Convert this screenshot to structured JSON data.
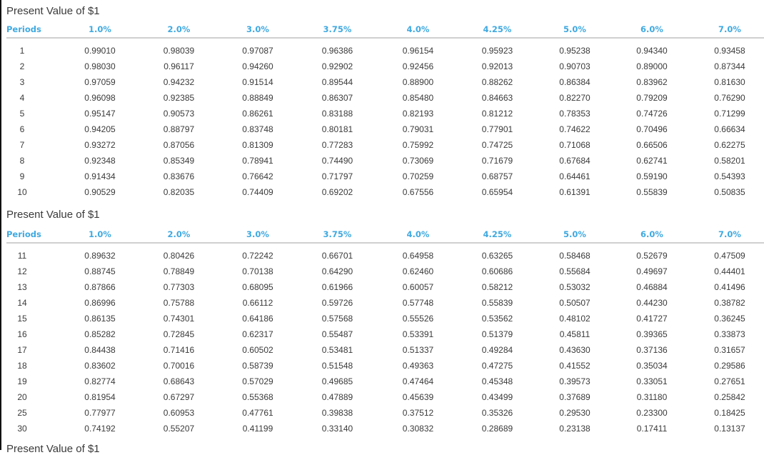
{
  "tables": [
    {
      "title": "Present Value of $1",
      "headers": [
        "Periods",
        "1.0%",
        "2.0%",
        "3.0%",
        "3.75%",
        "4.0%",
        "4.25%",
        "5.0%",
        "6.0%",
        "7.0%"
      ],
      "rows": [
        [
          "1",
          "0.99010",
          "0.98039",
          "0.97087",
          "0.96386",
          "0.96154",
          "0.95923",
          "0.95238",
          "0.94340",
          "0.93458"
        ],
        [
          "2",
          "0.98030",
          "0.96117",
          "0.94260",
          "0.92902",
          "0.92456",
          "0.92013",
          "0.90703",
          "0.89000",
          "0.87344"
        ],
        [
          "3",
          "0.97059",
          "0.94232",
          "0.91514",
          "0.89544",
          "0.88900",
          "0.88262",
          "0.86384",
          "0.83962",
          "0.81630"
        ],
        [
          "4",
          "0.96098",
          "0.92385",
          "0.88849",
          "0.86307",
          "0.85480",
          "0.84663",
          "0.82270",
          "0.79209",
          "0.76290"
        ],
        [
          "5",
          "0.95147",
          "0.90573",
          "0.86261",
          "0.83188",
          "0.82193",
          "0.81212",
          "0.78353",
          "0.74726",
          "0.71299"
        ],
        [
          "6",
          "0.94205",
          "0.88797",
          "0.83748",
          "0.80181",
          "0.79031",
          "0.77901",
          "0.74622",
          "0.70496",
          "0.66634"
        ],
        [
          "7",
          "0.93272",
          "0.87056",
          "0.81309",
          "0.77283",
          "0.75992",
          "0.74725",
          "0.71068",
          "0.66506",
          "0.62275"
        ],
        [
          "8",
          "0.92348",
          "0.85349",
          "0.78941",
          "0.74490",
          "0.73069",
          "0.71679",
          "0.67684",
          "0.62741",
          "0.58201"
        ],
        [
          "9",
          "0.91434",
          "0.83676",
          "0.76642",
          "0.71797",
          "0.70259",
          "0.68757",
          "0.64461",
          "0.59190",
          "0.54393"
        ],
        [
          "10",
          "0.90529",
          "0.82035",
          "0.74409",
          "0.69202",
          "0.67556",
          "0.65954",
          "0.61391",
          "0.55839",
          "0.50835"
        ]
      ]
    },
    {
      "title": "Present Value of $1",
      "headers": [
        "Periods",
        "1.0%",
        "2.0%",
        "3.0%",
        "3.75%",
        "4.0%",
        "4.25%",
        "5.0%",
        "6.0%",
        "7.0%"
      ],
      "rows": [
        [
          "11",
          "0.89632",
          "0.80426",
          "0.72242",
          "0.66701",
          "0.64958",
          "0.63265",
          "0.58468",
          "0.52679",
          "0.47509"
        ],
        [
          "12",
          "0.88745",
          "0.78849",
          "0.70138",
          "0.64290",
          "0.62460",
          "0.60686",
          "0.55684",
          "0.49697",
          "0.44401"
        ],
        [
          "13",
          "0.87866",
          "0.77303",
          "0.68095",
          "0.61966",
          "0.60057",
          "0.58212",
          "0.53032",
          "0.46884",
          "0.41496"
        ],
        [
          "14",
          "0.86996",
          "0.75788",
          "0.66112",
          "0.59726",
          "0.57748",
          "0.55839",
          "0.50507",
          "0.44230",
          "0.38782"
        ],
        [
          "15",
          "0.86135",
          "0.74301",
          "0.64186",
          "0.57568",
          "0.55526",
          "0.53562",
          "0.48102",
          "0.41727",
          "0.36245"
        ],
        [
          "16",
          "0.85282",
          "0.72845",
          "0.62317",
          "0.55487",
          "0.53391",
          "0.51379",
          "0.45811",
          "0.39365",
          "0.33873"
        ],
        [
          "17",
          "0.84438",
          "0.71416",
          "0.60502",
          "0.53481",
          "0.51337",
          "0.49284",
          "0.43630",
          "0.37136",
          "0.31657"
        ],
        [
          "18",
          "0.83602",
          "0.70016",
          "0.58739",
          "0.51548",
          "0.49363",
          "0.47275",
          "0.41552",
          "0.35034",
          "0.29586"
        ],
        [
          "19",
          "0.82774",
          "0.68643",
          "0.57029",
          "0.49685",
          "0.47464",
          "0.45348",
          "0.39573",
          "0.33051",
          "0.27651"
        ],
        [
          "20",
          "0.81954",
          "0.67297",
          "0.55368",
          "0.47889",
          "0.45639",
          "0.43499",
          "0.37689",
          "0.31180",
          "0.25842"
        ],
        [
          "25",
          "0.77977",
          "0.60953",
          "0.47761",
          "0.39838",
          "0.37512",
          "0.35326",
          "0.29530",
          "0.23300",
          "0.18425"
        ],
        [
          "30",
          "0.74192",
          "0.55207",
          "0.41199",
          "0.33140",
          "0.30832",
          "0.28689",
          "0.23138",
          "0.17411",
          "0.13137"
        ]
      ]
    }
  ],
  "next_title_partial": "Present Value of $1",
  "colors": {
    "header_accent": "#3fa9e0",
    "text": "#3a3a3a",
    "rule": "#d0d0d0"
  }
}
